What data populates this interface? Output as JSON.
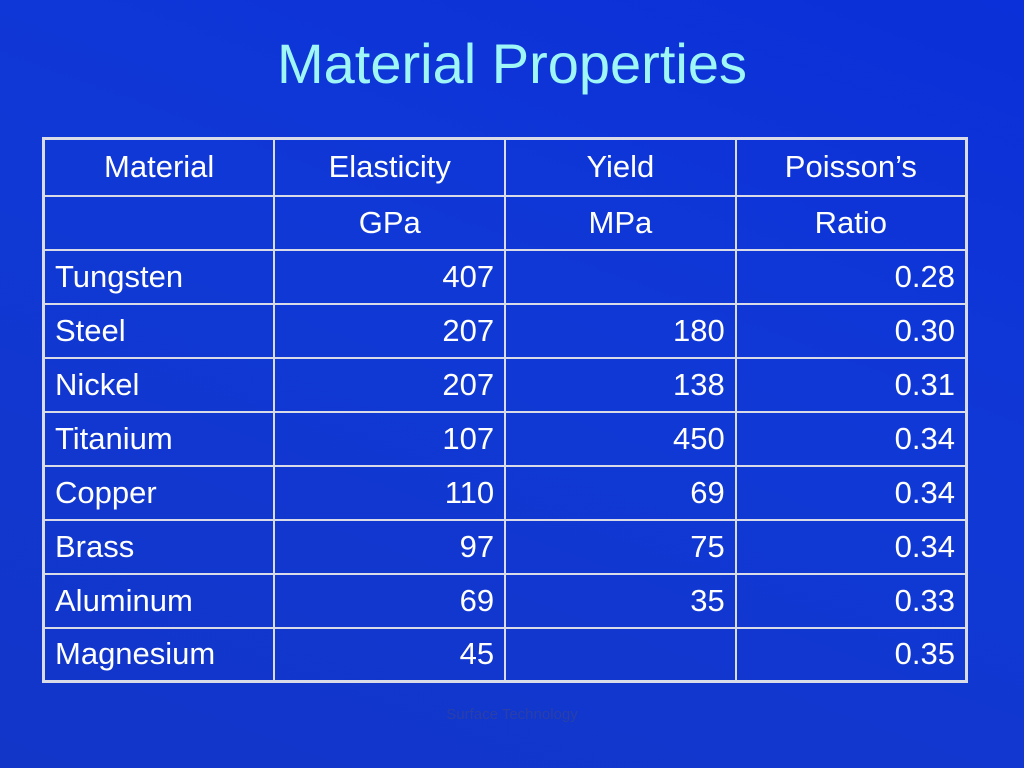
{
  "title": "Material Properties",
  "header_row1": [
    "Material",
    "Elasticity",
    "Yield",
    "Poisson’s"
  ],
  "header_row2": [
    "",
    "GPa",
    "MPa",
    "Ratio"
  ],
  "rows": [
    [
      "Tungsten",
      "407",
      "",
      "0.28"
    ],
    [
      "Steel",
      "207",
      "180",
      "0.30"
    ],
    [
      "Nickel",
      "207",
      "138",
      "0.31"
    ],
    [
      "Titanium",
      "107",
      "450",
      "0.34"
    ],
    [
      "Copper",
      "110",
      "69",
      "0.34"
    ],
    [
      "Brass",
      "97",
      "75",
      "0.34"
    ],
    [
      "Aluminum",
      "69",
      "35",
      "0.33"
    ],
    [
      "Magnesium",
      "45",
      "",
      "0.35"
    ]
  ],
  "footer": "Surface Technology",
  "colors": {
    "background": "#1038d6",
    "title": "#9ff6f6",
    "text": "#ffffff",
    "grid": "#d9dbe8",
    "footer": "#2a3fa8"
  }
}
